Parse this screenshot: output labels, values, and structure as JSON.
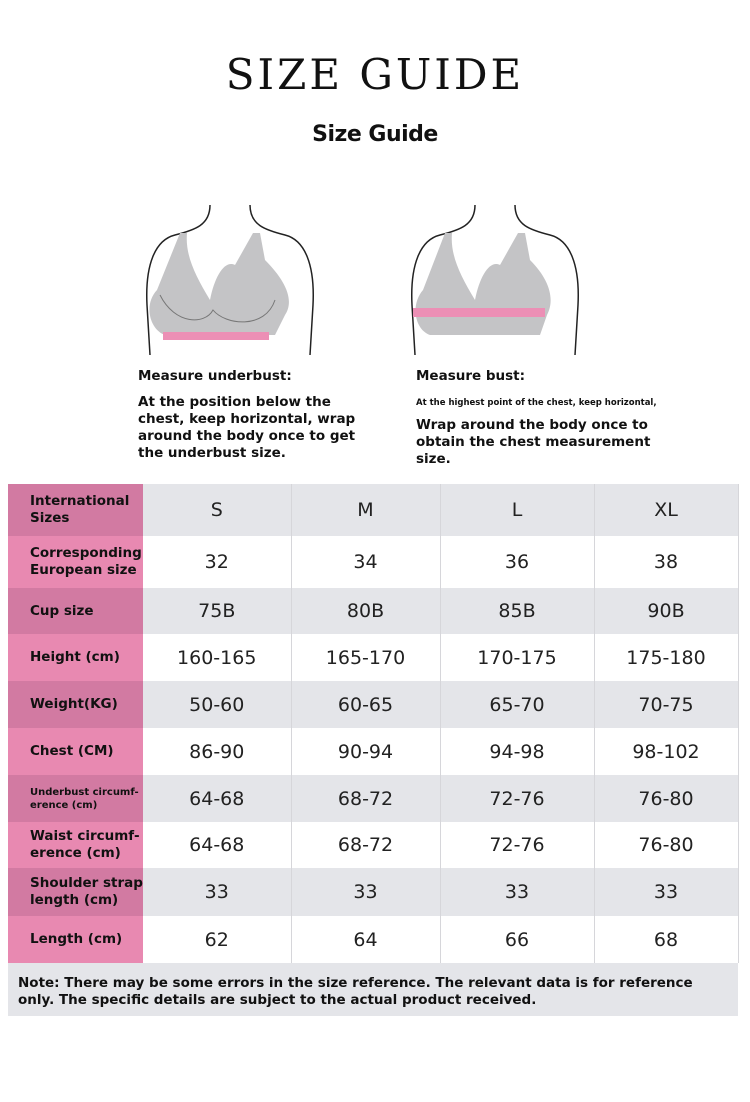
{
  "title": "SIZE GUIDE",
  "subtitle": "Size Guide",
  "underbust": {
    "heading": "Measure underbust:",
    "text": "At the position below the chest, keep horizontal, wrap around the body once to get the underbust size."
  },
  "bust": {
    "heading": "Measure bust:",
    "small": "At the highest point of the chest, keep horizontal,",
    "text": "Wrap around the body once to obtain the chest measurement size."
  },
  "table": {
    "rows": [
      {
        "label": "International Sizes",
        "values": [
          "S",
          "M",
          "L",
          "XL"
        ]
      },
      {
        "label": "Corresponding European size",
        "values": [
          "32",
          "34",
          "36",
          "38"
        ]
      },
      {
        "label": "Cup size",
        "values": [
          "75B",
          "80B",
          "85B",
          "90B"
        ]
      },
      {
        "label": "Height (cm)",
        "values": [
          "160-165",
          "165-170",
          "170-175",
          "175-180"
        ]
      },
      {
        "label": "Weight(KG)",
        "values": [
          "50-60",
          "60-65",
          "65-70",
          "70-75"
        ]
      },
      {
        "label": "Chest (CM)",
        "values": [
          "86-90",
          "90-94",
          "94-98",
          "98-102"
        ]
      },
      {
        "label": "Underbust circumf-erence (cm)",
        "values": [
          "64-68",
          "68-72",
          "72-76",
          "76-80"
        ]
      },
      {
        "label": "Waist circumf-erence (cm)",
        "values": [
          "64-68",
          "68-72",
          "72-76",
          "76-80"
        ]
      },
      {
        "label": "Shoulder strap length (cm)",
        "values": [
          "33",
          "33",
          "33",
          "33"
        ]
      },
      {
        "label": "Length (cm)",
        "values": [
          "62",
          "64",
          "66",
          "68"
        ]
      }
    ]
  },
  "note": "Note: There may be some errors in the size reference. The relevant data is for reference only. The specific details are subject to the actual product received.",
  "colors": {
    "pink_dark": "#d27aa2",
    "pink_light": "#e889b1",
    "gray": "#e4e5e9",
    "band": "#ec8fb5"
  }
}
